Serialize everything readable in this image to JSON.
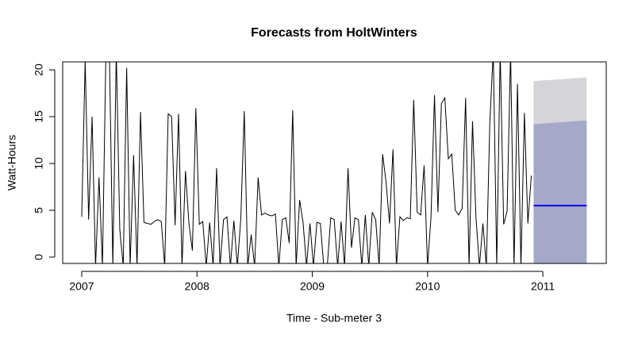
{
  "chart_data": {
    "type": "line",
    "title": "Forecasts from HoltWinters",
    "x_label": "Time - Sub-meter 3",
    "y_label": "Watt-Hours",
    "xlim": [
      2006.835,
      2011.55
    ],
    "ylim": [
      -0.68,
      20.85
    ],
    "xticks": [
      2007,
      2008,
      2009,
      2010,
      2011
    ],
    "yticks": [
      0,
      5,
      10,
      15,
      20
    ],
    "color": "#000000",
    "x": [
      2007.0,
      2007.03,
      2007.06,
      2007.09,
      2007.12,
      2007.15,
      2007.18,
      2007.21,
      2007.24,
      2007.27,
      2007.3,
      2007.33,
      2007.36,
      2007.39,
      2007.42,
      2007.45,
      2007.48,
      2007.51,
      2007.54,
      2007.57,
      2007.6,
      2007.63,
      2007.66,
      2007.69,
      2007.72,
      2007.75,
      2007.78,
      2007.81,
      2007.84,
      2007.87,
      2007.9,
      2007.93,
      2007.96,
      2007.99,
      2008.02,
      2008.05,
      2008.08,
      2008.11,
      2008.14,
      2008.17,
      2008.2,
      2008.23,
      2008.26,
      2008.29,
      2008.32,
      2008.35,
      2008.38,
      2008.41,
      2008.44,
      2008.47,
      2008.5,
      2008.53,
      2008.56,
      2008.59,
      2008.62,
      2008.65,
      2008.68,
      2008.71,
      2008.74,
      2008.77,
      2008.8,
      2008.83,
      2008.86,
      2008.89,
      2008.92,
      2008.95,
      2008.98,
      2009.01,
      2009.04,
      2009.07,
      2009.1,
      2009.13,
      2009.16,
      2009.19,
      2009.22,
      2009.25,
      2009.28,
      2009.31,
      2009.34,
      2009.37,
      2009.4,
      2009.43,
      2009.46,
      2009.49,
      2009.52,
      2009.55,
      2009.58,
      2009.61,
      2009.64,
      2009.67,
      2009.7,
      2009.73,
      2009.76,
      2009.79,
      2009.82,
      2009.85,
      2009.88,
      2009.91,
      2009.94,
      2009.97,
      2010.0,
      2010.03,
      2010.06,
      2010.09,
      2010.12,
      2010.15,
      2010.18,
      2010.21,
      2010.24,
      2010.27,
      2010.3,
      2010.33,
      2010.36,
      2010.39,
      2010.42,
      2010.45,
      2010.48,
      2010.51,
      2010.54,
      2010.57,
      2010.6,
      2010.63,
      2010.66,
      2010.69,
      2010.72,
      2010.75,
      2010.78,
      2010.81,
      2010.84,
      2010.87,
      2010.9
    ],
    "values": [
      4.3,
      21,
      4,
      15,
      -1,
      8.5,
      -1,
      22,
      22,
      -1,
      22,
      3,
      -1,
      20.2,
      -1,
      10.9,
      -1,
      15.5,
      3.7,
      3.6,
      3.5,
      3.8,
      4,
      3.8,
      -1,
      15.3,
      15,
      3.4,
      15.3,
      -1,
      9.2,
      3.6,
      0.7,
      15.9,
      3.5,
      3.8,
      -1,
      3.7,
      -1,
      9.5,
      -1,
      4,
      4.3,
      -1,
      3.9,
      -1,
      4.1,
      15.6,
      -1,
      2.4,
      -1,
      8.5,
      4.5,
      4.7,
      4.5,
      4.4,
      4.6,
      -1,
      4,
      4.2,
      1.5,
      15.7,
      -1,
      6.1,
      3.7,
      -1,
      3.6,
      -1,
      3.7,
      3.6,
      -1,
      -1,
      4.2,
      4,
      -1,
      3.8,
      -1,
      9.5,
      1,
      4.2,
      4,
      -1,
      4.5,
      -1,
      4.8,
      4,
      -1,
      11,
      8,
      3.6,
      11.5,
      -1,
      4.3,
      3.9,
      4.2,
      4.1,
      16.8,
      4.8,
      4.5,
      9.8,
      -1,
      4.3,
      17.3,
      4.8,
      16.4,
      17,
      10.5,
      11,
      5,
      4.5,
      5.2,
      17,
      -1,
      14.5,
      4.2,
      -1,
      3.6,
      -1,
      14.4,
      22,
      -1,
      22,
      3.5,
      4.9,
      22,
      -1,
      18.5,
      -1,
      15.4,
      3.6,
      8.7
    ],
    "forecast": {
      "x": [
        2010.92,
        2011.15,
        2011.38
      ],
      "mean": [
        5.5,
        5.5,
        5.5
      ],
      "lo80": [
        -3,
        -3.1,
        -3.2
      ],
      "hi80": [
        14.2,
        14.4,
        14.6
      ],
      "lo95": [
        -7,
        -7.2,
        -7.4
      ],
      "hi95": [
        18.8,
        19.0,
        19.2
      ],
      "mean_color": "#0000ff",
      "band80_color": "#a5a8c9",
      "band95_color": "#d4d4d9"
    }
  }
}
